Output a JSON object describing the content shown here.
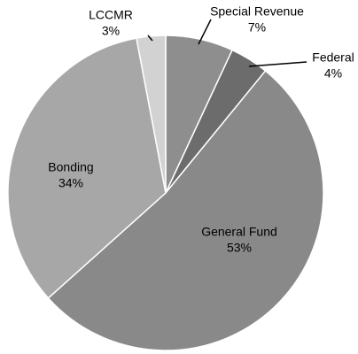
{
  "chart_data": {
    "type": "pie",
    "categories": [
      "Special Revenue",
      "Federal",
      "General Fund",
      "Bonding",
      "LCCMR"
    ],
    "values": [
      7,
      4,
      53,
      34,
      3
    ],
    "value_labels": [
      "7%",
      "4%",
      "53%",
      "34%",
      "3%"
    ],
    "colors": [
      "#8e8e8e",
      "#6c6c6c",
      "#898989",
      "#a7a7a7",
      "#d2d2d2"
    ]
  }
}
